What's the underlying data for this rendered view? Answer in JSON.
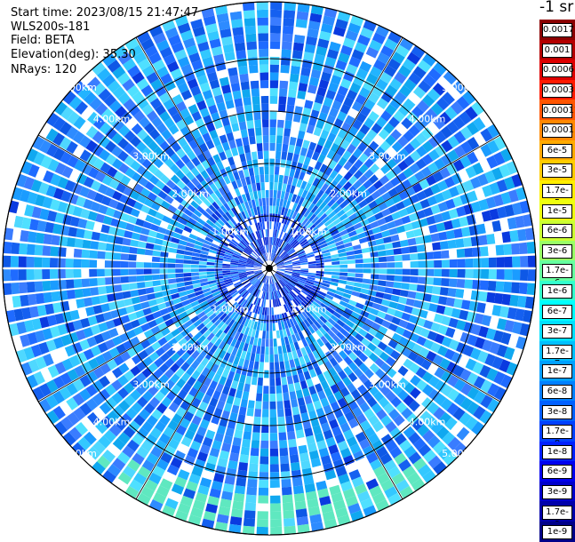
{
  "header": {
    "start_time": "Start time: 2023/08/15 21:47:47",
    "instrument": "WLS200s-181",
    "field": "Field: BETA",
    "elevation": "Elevation(deg): 35.30",
    "nrays": "NRays: 120"
  },
  "colorbar": {
    "units": "-1 sr",
    "levels": [
      "0.0017",
      "0.001",
      "0.0006",
      "0.0003",
      "0.00017",
      "0.0001",
      "6e-5",
      "3e-5",
      "1.7e-5",
      "1e-5",
      "6e-6",
      "3e-6",
      "1.7e-6",
      "1e-6",
      "6e-7",
      "3e-7",
      "1.7e-7",
      "1e-7",
      "6e-8",
      "3e-8",
      "1.7e-8",
      "1e-8",
      "6e-9",
      "3e-9",
      "1.7e-9",
      "1e-9"
    ],
    "colors": [
      "#8b0000",
      "#b40000",
      "#dd0000",
      "#ff1a00",
      "#ff5500",
      "#ff8800",
      "#ffaa00",
      "#ffcc00",
      "#ffee00",
      "#eeff10",
      "#ccff33",
      "#99ff66",
      "#66ffa0",
      "#33ffcc",
      "#00ffff",
      "#00e0ff",
      "#00c0ff",
      "#00a0ff",
      "#0080ff",
      "#0060ff",
      "#0040ff",
      "#0020ff",
      "#0000ee",
      "#0000cc",
      "#0000aa",
      "#000088"
    ]
  },
  "chart_data": {
    "type": "heatmap",
    "projection": "polar (PPI)",
    "range_ring_labels": [
      "1.00km",
      "2.00km",
      "3.00km",
      "4.00km",
      "5.00km"
    ],
    "rays": 120,
    "field": "BETA",
    "elevation_deg": 35.3
  }
}
